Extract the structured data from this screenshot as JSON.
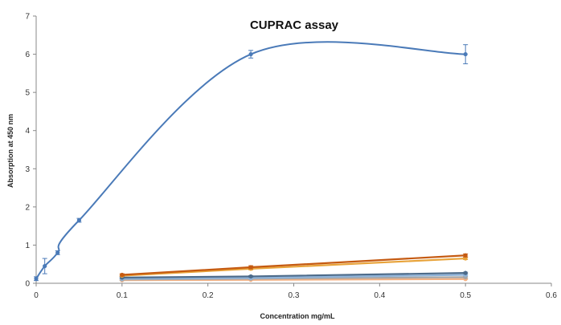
{
  "chart_data": {
    "type": "line",
    "title": "CUPRAC assay",
    "xlabel": "Concentration mg/mL",
    "ylabel": "Absorption at 450 nm",
    "xlim": [
      0,
      0.6
    ],
    "ylim": [
      0,
      7
    ],
    "x_ticks": [
      "0",
      "0.1",
      "0.2",
      "0.3",
      "0.4",
      "0.5",
      "0.6"
    ],
    "y_ticks": [
      "0",
      "1",
      "2",
      "3",
      "4",
      "5",
      "6",
      "7"
    ],
    "grid": false,
    "series": [
      {
        "color": "#4a7ab8",
        "smooth": true,
        "points": [
          {
            "x": 0,
            "y": 0.12,
            "err": 0.05
          },
          {
            "x": 0.01,
            "y": 0.45,
            "err": 0.2
          },
          {
            "x": 0.025,
            "y": 0.8,
            "err": 0.05
          },
          {
            "x": 0.05,
            "y": 1.65,
            "err": 0.05
          },
          {
            "x": 0.25,
            "y": 6.0,
            "err": 0.1
          },
          {
            "x": 0.5,
            "y": 6.0,
            "err": 0.25
          }
        ]
      },
      {
        "color": "#c55a11",
        "points": [
          {
            "x": 0.1,
            "y": 0.22,
            "err": 0.03
          },
          {
            "x": 0.25,
            "y": 0.42,
            "err": 0.04
          },
          {
            "x": 0.5,
            "y": 0.73,
            "err": 0.04
          }
        ]
      },
      {
        "color": "#e8a33a",
        "points": [
          {
            "x": 0.1,
            "y": 0.2,
            "err": 0.02
          },
          {
            "x": 0.25,
            "y": 0.38,
            "err": 0.03
          },
          {
            "x": 0.5,
            "y": 0.65,
            "err": 0.03
          }
        ]
      },
      {
        "color": "#4d6b8a",
        "points": [
          {
            "x": 0.1,
            "y": 0.15,
            "err": 0.02
          },
          {
            "x": 0.25,
            "y": 0.18,
            "err": 0.02
          },
          {
            "x": 0.5,
            "y": 0.27,
            "err": 0.02
          }
        ]
      },
      {
        "color": "#8fb3d9",
        "points": [
          {
            "x": 0.1,
            "y": 0.12,
            "err": 0.02
          },
          {
            "x": 0.25,
            "y": 0.14,
            "err": 0.02
          },
          {
            "x": 0.5,
            "y": 0.22,
            "err": 0.02
          }
        ]
      },
      {
        "color": "#a6a6a6",
        "points": [
          {
            "x": 0.1,
            "y": 0.1,
            "err": 0.02
          },
          {
            "x": 0.25,
            "y": 0.12,
            "err": 0.02
          },
          {
            "x": 0.5,
            "y": 0.16,
            "err": 0.02
          }
        ]
      },
      {
        "color": "#f4b183",
        "points": [
          {
            "x": 0.1,
            "y": 0.08,
            "err": 0.01
          },
          {
            "x": 0.25,
            "y": 0.09,
            "err": 0.01
          },
          {
            "x": 0.5,
            "y": 0.11,
            "err": 0.01
          }
        ]
      }
    ]
  }
}
